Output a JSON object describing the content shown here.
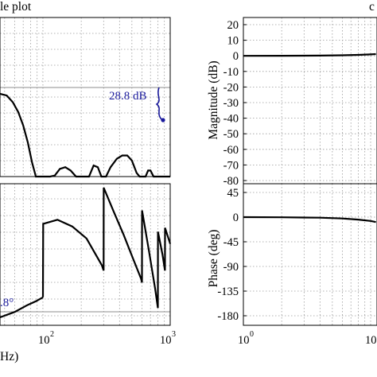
{
  "header": {
    "left_title_fragment": "le plot",
    "right_title_fragment": "c"
  },
  "chart_data": [
    {
      "id": "left-magnitude",
      "type": "line",
      "title": "le plot",
      "xscale": "log",
      "xlim": [
        46,
        1000
      ],
      "grid": true,
      "color": "#000000",
      "x": [
        46,
        52,
        58,
        64,
        70,
        76,
        82,
        88,
        94,
        99,
        100,
        101,
        106,
        114,
        124,
        136,
        150,
        165,
        182,
        196,
        203,
        210,
        230,
        250,
        270,
        288,
        299,
        300,
        301,
        313,
        340,
        380,
        420,
        460,
        500,
        545,
        575,
        593,
        599,
        600,
        601,
        612,
        640,
        670,
        700,
        740,
        770,
        788,
        796,
        800,
        803,
        808,
        830,
        870,
        900,
        903,
        906,
        910,
        940,
        975,
        1000
      ],
      "y": [
        0.0,
        0.02,
        0.1,
        0.22,
        0.38,
        0.58,
        0.82,
        1.15,
        1.6,
        2.5,
        2.85,
        2.5,
        1.6,
        1.18,
        0.98,
        0.9,
        0.88,
        0.92,
        1.05,
        1.4,
        1.7,
        1.4,
        1.0,
        0.86,
        0.88,
        1.05,
        1.6,
        2.85,
        1.6,
        1.08,
        0.88,
        0.78,
        0.74,
        0.74,
        0.8,
        0.95,
        1.18,
        1.5,
        2.0,
        2.85,
        2.0,
        1.3,
        1.02,
        0.92,
        0.92,
        1.05,
        1.3,
        1.6,
        2.0,
        2.4,
        2.05,
        1.7,
        1.52,
        1.55,
        1.8,
        2.85,
        1.9,
        1.62,
        1.45,
        1.45,
        1.47
      ],
      "note": "values read as relative depth below the peak envelope (no y tick labels visible)"
    },
    {
      "id": "left-phase",
      "type": "line",
      "xscale": "log",
      "xlim": [
        46,
        1000
      ],
      "xticks": [
        {
          "base": "10",
          "exp": "2"
        },
        {
          "base": "10",
          "exp": "3"
        }
      ],
      "xlabel": "Hz)",
      "grid": true,
      "color": "#000000",
      "segments": [
        {
          "x": [
            46,
            60,
            75,
            88,
            100
          ],
          "y": [
            0.97,
            0.93,
            0.88,
            0.85,
            0.82
          ]
        },
        {
          "x": [
            100,
            100.5,
            130,
            170,
            220,
            290,
            300
          ],
          "y": [
            0.82,
            0.27,
            0.24,
            0.29,
            0.38,
            0.58,
            0.62
          ]
        },
        {
          "x": [
            300,
            300.5,
            360,
            430,
            510,
            590,
            600
          ],
          "y": [
            0.62,
            0.0,
            0.18,
            0.35,
            0.53,
            0.68,
            0.71
          ]
        },
        {
          "x": [
            600,
            601,
            680,
            760,
            800
          ],
          "y": [
            0.71,
            0.17,
            0.47,
            0.75,
            0.9
          ]
        },
        {
          "x": [
            800,
            801,
            870,
            910
          ],
          "y": [
            0.9,
            0.33,
            0.5,
            0.62
          ]
        },
        {
          "x": [
            910,
            911,
            1000
          ],
          "y": [
            0.62,
            0.3,
            0.42
          ]
        }
      ]
    },
    {
      "id": "right-magnitude",
      "type": "line",
      "xscale": "log",
      "xlim": [
        10,
        1000
      ],
      "ylabel": "Magnitude (dB)",
      "ylim": [
        -80,
        20
      ],
      "yticks": [
        20,
        10,
        0,
        -10,
        -20,
        -30,
        -40,
        -50,
        -60,
        -70,
        -80
      ],
      "grid": true,
      "color": "#000000",
      "x": [
        10,
        20,
        40,
        60,
        80,
        100,
        110
      ],
      "y": [
        0.0,
        0.05,
        0.15,
        0.35,
        0.6,
        0.9,
        1.1
      ]
    },
    {
      "id": "right-phase",
      "type": "line",
      "xscale": "log",
      "xlim": [
        10,
        1000
      ],
      "xticks": [
        {
          "base": "10",
          "exp": "0"
        },
        {
          "base": "10",
          "exp": ""
        }
      ],
      "ylabel": "Phase (deg)",
      "ylim": [
        -180,
        45
      ],
      "yticks": [
        45,
        0,
        -45,
        -90,
        -135,
        -180
      ],
      "grid": true,
      "color": "#000000",
      "x": [
        10,
        20,
        40,
        60,
        80,
        100,
        110
      ],
      "y": [
        0.0,
        -0.3,
        -1.0,
        -2.5,
        -4.5,
        -7.0,
        -9.0
      ]
    }
  ],
  "annotations": {
    "peak_gap": "28.8 dB",
    "phase_margin": ".8°"
  },
  "colors": {
    "annotation": "#1a1a9c",
    "grid": "#9a9a9a",
    "reference_line": "#8c8c8c"
  }
}
